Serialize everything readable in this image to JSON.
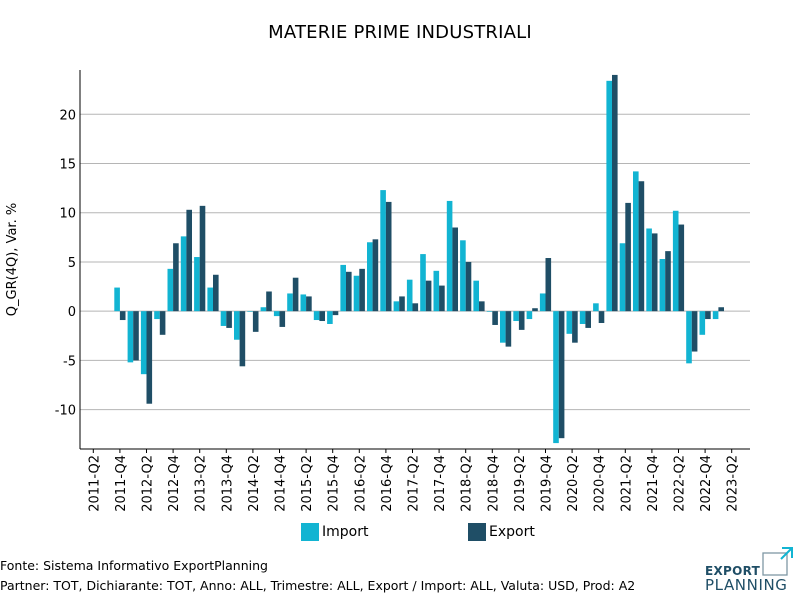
{
  "chart_data": {
    "type": "bar",
    "title": "MATERIE PRIME INDUSTRIALI",
    "ylabel": "Q_GR(4Q), Var. %",
    "xlabel": "",
    "ylim": [
      -14,
      24.5
    ],
    "yticks": [
      -10,
      -5,
      0,
      5,
      10,
      15,
      20
    ],
    "grid": true,
    "legend_position": "bottom-center",
    "categories": [
      "2011-Q2",
      "2011-Q3",
      "2011-Q4",
      "2012-Q1",
      "2012-Q2",
      "2012-Q3",
      "2012-Q4",
      "2013-Q1",
      "2013-Q2",
      "2013-Q3",
      "2013-Q4",
      "2014-Q1",
      "2014-Q2",
      "2014-Q3",
      "2014-Q4",
      "2015-Q1",
      "2015-Q2",
      "2015-Q3",
      "2015-Q4",
      "2016-Q1",
      "2016-Q2",
      "2016-Q3",
      "2016-Q4",
      "2017-Q1",
      "2017-Q2",
      "2017-Q3",
      "2017-Q4",
      "2018-Q1",
      "2018-Q2",
      "2018-Q3",
      "2018-Q4",
      "2019-Q1",
      "2019-Q2",
      "2019-Q3",
      "2019-Q4",
      "2020-Q1",
      "2020-Q2",
      "2020-Q3",
      "2020-Q4",
      "2021-Q1",
      "2021-Q2",
      "2021-Q3",
      "2021-Q4",
      "2022-Q1",
      "2022-Q2",
      "2022-Q3",
      "2022-Q4",
      "2023-Q1",
      "2023-Q2"
    ],
    "tick_labels": [
      "2011-Q2",
      "2011-Q4",
      "2012-Q2",
      "2012-Q4",
      "2013-Q2",
      "2013-Q4",
      "2014-Q2",
      "2014-Q4",
      "2015-Q2",
      "2015-Q4",
      "2016-Q2",
      "2016-Q4",
      "2017-Q2",
      "2017-Q4",
      "2018-Q2",
      "2018-Q4",
      "2019-Q2",
      "2019-Q4",
      "2020-Q2",
      "2020-Q4",
      "2021-Q2",
      "2021-Q4",
      "2022-Q2",
      "2022-Q4",
      "2023-Q2"
    ],
    "series": [
      {
        "name": "Import",
        "color": "#12b4d2",
        "values": [
          null,
          null,
          2.4,
          -5.2,
          -6.4,
          -0.8,
          4.3,
          7.6,
          5.5,
          2.4,
          -1.5,
          -2.9,
          0.0,
          0.4,
          -0.5,
          1.8,
          1.7,
          -0.9,
          -1.3,
          4.7,
          3.6,
          7.0,
          12.3,
          1.0,
          3.2,
          5.8,
          4.1,
          11.2,
          7.2,
          3.1,
          0.0,
          -3.2,
          -1.0,
          -0.8,
          1.8,
          -13.4,
          -2.3,
          -1.3,
          0.8,
          23.4,
          6.9,
          14.2,
          8.4,
          5.3,
          10.2,
          -5.3,
          -2.4,
          -0.8,
          null
        ]
      },
      {
        "name": "Export",
        "color": "#1f4e66",
        "values": [
          null,
          null,
          -0.9,
          -5.0,
          -9.4,
          -2.4,
          6.9,
          10.3,
          10.7,
          3.7,
          -1.7,
          -5.6,
          -2.1,
          2.0,
          -1.6,
          3.4,
          1.5,
          -1.0,
          -0.4,
          4.0,
          4.3,
          7.3,
          11.1,
          1.5,
          0.8,
          3.1,
          2.6,
          8.5,
          5.0,
          1.0,
          -1.4,
          -3.6,
          -1.9,
          0.3,
          5.4,
          -12.9,
          -3.2,
          -1.7,
          -1.2,
          24.0,
          11.0,
          13.2,
          7.9,
          6.1,
          8.8,
          -4.1,
          -0.8,
          0.4,
          null
        ]
      }
    ]
  },
  "legend": {
    "import_label": "Import",
    "export_label": "Export"
  },
  "footer": {
    "source": "Fonte: Sistema Informativo ExportPlanning",
    "partner": "Partner: TOT, Dichiarante: TOT, Anno: ALL, Trimestre: ALL, Export / Import: ALL, Valuta: USD, Prod: A2"
  },
  "logo": {
    "line1": "EXPORT",
    "line2": "PLANNING"
  }
}
